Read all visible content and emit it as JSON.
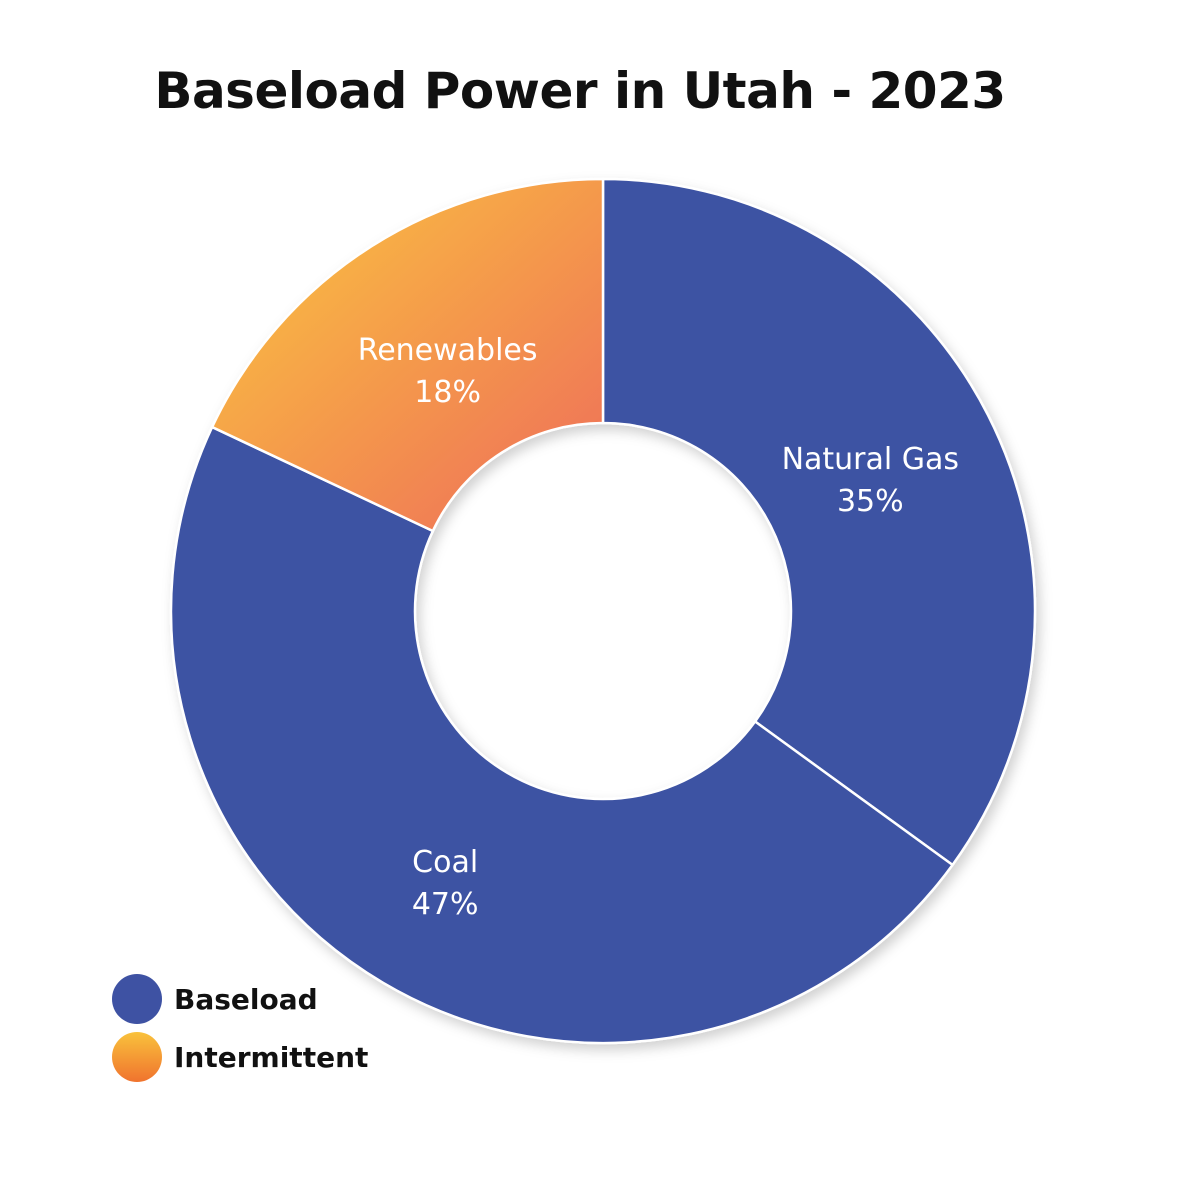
{
  "title": "Baseload Power in Utah - 2023",
  "chart_data": {
    "type": "pie",
    "title": "Baseload Power in Utah - 2023",
    "categories": [
      "Natural Gas",
      "Coal",
      "Renewables"
    ],
    "values": [
      35,
      47,
      18
    ],
    "value_labels": [
      "35%",
      "47%",
      "18%"
    ],
    "groups": [
      "Baseload",
      "Baseload",
      "Intermittent"
    ],
    "donut": true,
    "legend": {
      "position": "bottom-left",
      "items": [
        {
          "label": "Baseload",
          "color": "#3E52A3"
        },
        {
          "label": "Intermittent",
          "color": "#F5A623"
        }
      ]
    }
  },
  "colors": {
    "baseload": "#3E52A3",
    "intermittent_start": "#FBC93D",
    "intermittent_end": "#EE6B5A",
    "title": "#111111",
    "label": "#FFFFFF"
  }
}
